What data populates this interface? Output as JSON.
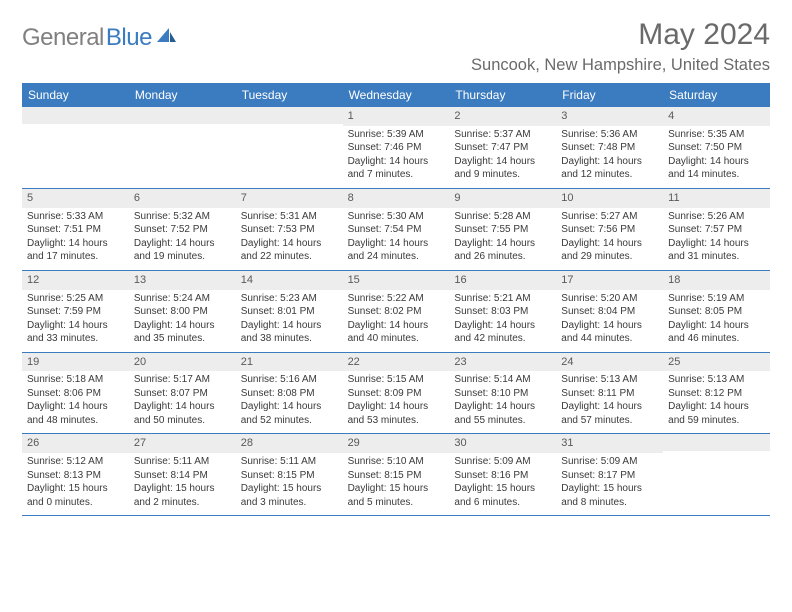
{
  "logo": {
    "text1": "General",
    "text2": "Blue"
  },
  "title": "May 2024",
  "location": "Suncook, New Hampshire, United States",
  "colors": {
    "header_bg": "#3b7bbf",
    "header_fg": "#ffffff",
    "daynum_bg": "#ededed",
    "text": "#3a3a3a",
    "title": "#6a6a6a"
  },
  "day_names": [
    "Sunday",
    "Monday",
    "Tuesday",
    "Wednesday",
    "Thursday",
    "Friday",
    "Saturday"
  ],
  "weeks": [
    [
      {
        "n": "",
        "sr": "",
        "ss": "",
        "dl": ""
      },
      {
        "n": "",
        "sr": "",
        "ss": "",
        "dl": ""
      },
      {
        "n": "",
        "sr": "",
        "ss": "",
        "dl": ""
      },
      {
        "n": "1",
        "sr": "Sunrise: 5:39 AM",
        "ss": "Sunset: 7:46 PM",
        "dl": "Daylight: 14 hours and 7 minutes."
      },
      {
        "n": "2",
        "sr": "Sunrise: 5:37 AM",
        "ss": "Sunset: 7:47 PM",
        "dl": "Daylight: 14 hours and 9 minutes."
      },
      {
        "n": "3",
        "sr": "Sunrise: 5:36 AM",
        "ss": "Sunset: 7:48 PM",
        "dl": "Daylight: 14 hours and 12 minutes."
      },
      {
        "n": "4",
        "sr": "Sunrise: 5:35 AM",
        "ss": "Sunset: 7:50 PM",
        "dl": "Daylight: 14 hours and 14 minutes."
      }
    ],
    [
      {
        "n": "5",
        "sr": "Sunrise: 5:33 AM",
        "ss": "Sunset: 7:51 PM",
        "dl": "Daylight: 14 hours and 17 minutes."
      },
      {
        "n": "6",
        "sr": "Sunrise: 5:32 AM",
        "ss": "Sunset: 7:52 PM",
        "dl": "Daylight: 14 hours and 19 minutes."
      },
      {
        "n": "7",
        "sr": "Sunrise: 5:31 AM",
        "ss": "Sunset: 7:53 PM",
        "dl": "Daylight: 14 hours and 22 minutes."
      },
      {
        "n": "8",
        "sr": "Sunrise: 5:30 AM",
        "ss": "Sunset: 7:54 PM",
        "dl": "Daylight: 14 hours and 24 minutes."
      },
      {
        "n": "9",
        "sr": "Sunrise: 5:28 AM",
        "ss": "Sunset: 7:55 PM",
        "dl": "Daylight: 14 hours and 26 minutes."
      },
      {
        "n": "10",
        "sr": "Sunrise: 5:27 AM",
        "ss": "Sunset: 7:56 PM",
        "dl": "Daylight: 14 hours and 29 minutes."
      },
      {
        "n": "11",
        "sr": "Sunrise: 5:26 AM",
        "ss": "Sunset: 7:57 PM",
        "dl": "Daylight: 14 hours and 31 minutes."
      }
    ],
    [
      {
        "n": "12",
        "sr": "Sunrise: 5:25 AM",
        "ss": "Sunset: 7:59 PM",
        "dl": "Daylight: 14 hours and 33 minutes."
      },
      {
        "n": "13",
        "sr": "Sunrise: 5:24 AM",
        "ss": "Sunset: 8:00 PM",
        "dl": "Daylight: 14 hours and 35 minutes."
      },
      {
        "n": "14",
        "sr": "Sunrise: 5:23 AM",
        "ss": "Sunset: 8:01 PM",
        "dl": "Daylight: 14 hours and 38 minutes."
      },
      {
        "n": "15",
        "sr": "Sunrise: 5:22 AM",
        "ss": "Sunset: 8:02 PM",
        "dl": "Daylight: 14 hours and 40 minutes."
      },
      {
        "n": "16",
        "sr": "Sunrise: 5:21 AM",
        "ss": "Sunset: 8:03 PM",
        "dl": "Daylight: 14 hours and 42 minutes."
      },
      {
        "n": "17",
        "sr": "Sunrise: 5:20 AM",
        "ss": "Sunset: 8:04 PM",
        "dl": "Daylight: 14 hours and 44 minutes."
      },
      {
        "n": "18",
        "sr": "Sunrise: 5:19 AM",
        "ss": "Sunset: 8:05 PM",
        "dl": "Daylight: 14 hours and 46 minutes."
      }
    ],
    [
      {
        "n": "19",
        "sr": "Sunrise: 5:18 AM",
        "ss": "Sunset: 8:06 PM",
        "dl": "Daylight: 14 hours and 48 minutes."
      },
      {
        "n": "20",
        "sr": "Sunrise: 5:17 AM",
        "ss": "Sunset: 8:07 PM",
        "dl": "Daylight: 14 hours and 50 minutes."
      },
      {
        "n": "21",
        "sr": "Sunrise: 5:16 AM",
        "ss": "Sunset: 8:08 PM",
        "dl": "Daylight: 14 hours and 52 minutes."
      },
      {
        "n": "22",
        "sr": "Sunrise: 5:15 AM",
        "ss": "Sunset: 8:09 PM",
        "dl": "Daylight: 14 hours and 53 minutes."
      },
      {
        "n": "23",
        "sr": "Sunrise: 5:14 AM",
        "ss": "Sunset: 8:10 PM",
        "dl": "Daylight: 14 hours and 55 minutes."
      },
      {
        "n": "24",
        "sr": "Sunrise: 5:13 AM",
        "ss": "Sunset: 8:11 PM",
        "dl": "Daylight: 14 hours and 57 minutes."
      },
      {
        "n": "25",
        "sr": "Sunrise: 5:13 AM",
        "ss": "Sunset: 8:12 PM",
        "dl": "Daylight: 14 hours and 59 minutes."
      }
    ],
    [
      {
        "n": "26",
        "sr": "Sunrise: 5:12 AM",
        "ss": "Sunset: 8:13 PM",
        "dl": "Daylight: 15 hours and 0 minutes."
      },
      {
        "n": "27",
        "sr": "Sunrise: 5:11 AM",
        "ss": "Sunset: 8:14 PM",
        "dl": "Daylight: 15 hours and 2 minutes."
      },
      {
        "n": "28",
        "sr": "Sunrise: 5:11 AM",
        "ss": "Sunset: 8:15 PM",
        "dl": "Daylight: 15 hours and 3 minutes."
      },
      {
        "n": "29",
        "sr": "Sunrise: 5:10 AM",
        "ss": "Sunset: 8:15 PM",
        "dl": "Daylight: 15 hours and 5 minutes."
      },
      {
        "n": "30",
        "sr": "Sunrise: 5:09 AM",
        "ss": "Sunset: 8:16 PM",
        "dl": "Daylight: 15 hours and 6 minutes."
      },
      {
        "n": "31",
        "sr": "Sunrise: 5:09 AM",
        "ss": "Sunset: 8:17 PM",
        "dl": "Daylight: 15 hours and 8 minutes."
      },
      {
        "n": "",
        "sr": "",
        "ss": "",
        "dl": ""
      }
    ]
  ]
}
